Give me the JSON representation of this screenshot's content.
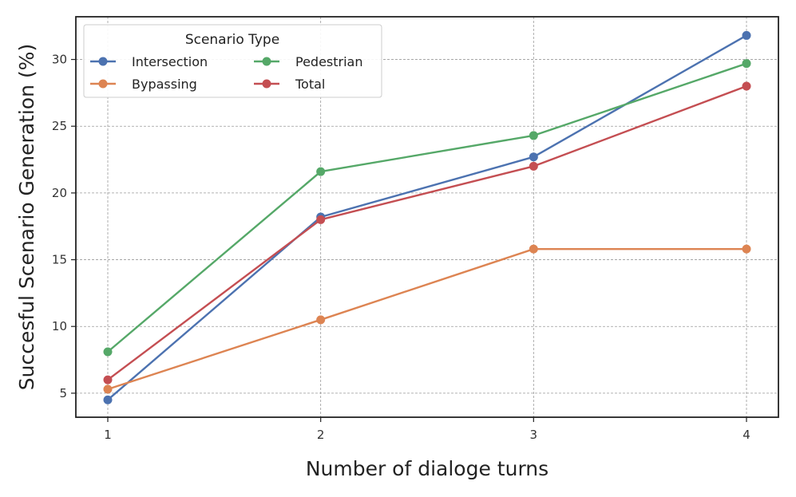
{
  "chart_data": {
    "type": "line",
    "title": "",
    "xlabel": "Number of dialoge turns",
    "ylabel": "Succesful Scenario Generation (%)",
    "x": [
      1,
      2,
      3,
      4
    ],
    "x_tick_labels": [
      "1",
      "2",
      "3",
      "4"
    ],
    "xlim": [
      0.85,
      4.15
    ],
    "ylim": [
      3.2,
      33.2
    ],
    "y_ticks": [
      5,
      10,
      15,
      20,
      25,
      30
    ],
    "y_tick_labels": [
      "5",
      "10",
      "15",
      "20",
      "25",
      "30"
    ],
    "grid": true,
    "legend": {
      "title": "Scenario Type",
      "placement": "top-left",
      "columns": 2
    },
    "series": [
      {
        "name": "Intersection",
        "color": "#4c72b0",
        "values": [
          4.5,
          18.2,
          22.7,
          31.8
        ]
      },
      {
        "name": "Bypassing",
        "color": "#dd8452",
        "values": [
          5.3,
          10.5,
          15.8,
          15.8
        ]
      },
      {
        "name": "Pedestrian",
        "color": "#55a868",
        "values": [
          8.1,
          21.6,
          24.3,
          29.7
        ]
      },
      {
        "name": "Total",
        "color": "#c44e52",
        "values": [
          6.0,
          18.0,
          22.0,
          28.0
        ]
      }
    ]
  }
}
